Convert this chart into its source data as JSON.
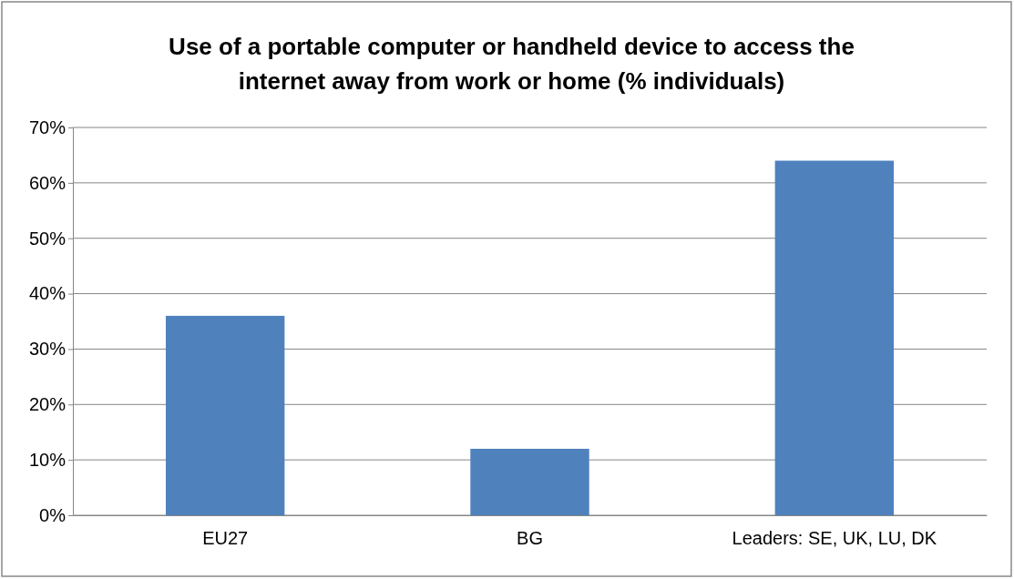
{
  "chart_data": {
    "type": "bar",
    "title": "Use of a portable computer or handheld device to access the internet away from work or home (% individuals)",
    "categories": [
      "EU27",
      "BG",
      "Leaders: SE, UK, LU, DK"
    ],
    "values": [
      36,
      12,
      64
    ],
    "color": "#4f81bd",
    "ylim": [
      0,
      70
    ],
    "yticks": [
      {
        "value": 0,
        "label": "0%"
      },
      {
        "value": 10,
        "label": "10%"
      },
      {
        "value": 20,
        "label": "20%"
      },
      {
        "value": 30,
        "label": "30%"
      },
      {
        "value": 40,
        "label": "40%"
      },
      {
        "value": 50,
        "label": "50%"
      },
      {
        "value": 60,
        "label": "60%"
      },
      {
        "value": 70,
        "label": "70%"
      }
    ],
    "grid": "y"
  }
}
